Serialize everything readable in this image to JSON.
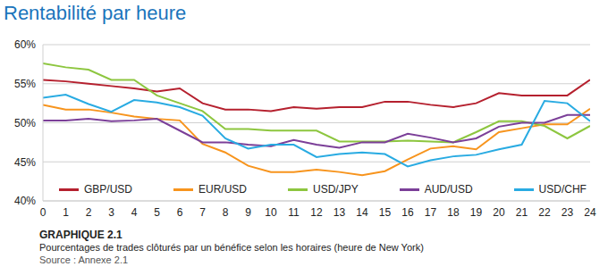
{
  "chart_data": {
    "type": "line",
    "title": "Rentabilité par heure",
    "annotations": [
      "GRAPHIQUE 2.1",
      "Pourcentages de trades clôturés par un bénéfice selon les horaires (heure de New York)",
      "Source : Annexe 2.1"
    ],
    "x": [
      0,
      1,
      2,
      3,
      4,
      5,
      6,
      7,
      8,
      9,
      10,
      11,
      12,
      13,
      14,
      15,
      16,
      17,
      18,
      19,
      20,
      21,
      22,
      23,
      24
    ],
    "xlim": [
      0,
      24
    ],
    "xticks": [
      0,
      1,
      2,
      3,
      4,
      5,
      6,
      7,
      8,
      9,
      10,
      11,
      12,
      13,
      14,
      15,
      16,
      17,
      18,
      19,
      20,
      21,
      22,
      23,
      24
    ],
    "ylim": [
      40,
      60
    ],
    "yticks": [
      {
        "value": 40,
        "label": "40%"
      },
      {
        "value": 45,
        "label": "45%"
      },
      {
        "value": 50,
        "label": "50%"
      },
      {
        "value": 55,
        "label": "55%"
      },
      {
        "value": 60,
        "label": "60%"
      }
    ],
    "grid": true,
    "legend": "bottom",
    "series": [
      {
        "name": "GBP/USD",
        "color": "#b5202e",
        "values": [
          55.5,
          55.3,
          55,
          54.7,
          54.4,
          54,
          54.4,
          52.5,
          51.7,
          51.7,
          51.5,
          52,
          51.8,
          52,
          52,
          52.7,
          52.7,
          52.3,
          52,
          52.5,
          53.8,
          53.5,
          53.5,
          53.5,
          55.5
        ]
      },
      {
        "name": "EUR/USD",
        "color": "#f7941d",
        "values": [
          52.3,
          51.7,
          51.7,
          51.3,
          50.8,
          50.5,
          50.3,
          47.3,
          46.2,
          44.5,
          43.7,
          43.7,
          44,
          43.7,
          43.3,
          43.8,
          45.3,
          46.7,
          47,
          46.6,
          48.8,
          49.3,
          49.8,
          49.8,
          51.8
        ]
      },
      {
        "name": "USD/JPY",
        "color": "#8dc63f",
        "values": [
          57.6,
          57.1,
          56.8,
          55.5,
          55.5,
          53.5,
          52.5,
          51.5,
          49.2,
          49.2,
          49,
          49,
          49,
          47.6,
          47.6,
          47.6,
          47.7,
          47.6,
          47.5,
          48.8,
          50.2,
          50.2,
          49.6,
          48,
          49.6
        ]
      },
      {
        "name": "AUD/USD",
        "color": "#7b3f98",
        "values": [
          50.3,
          50.3,
          50.5,
          50.2,
          50.3,
          50.5,
          49,
          47.5,
          47.5,
          47.2,
          47,
          47.8,
          47.2,
          46.8,
          47.5,
          47.5,
          48.6,
          48.1,
          47.5,
          48,
          49.5,
          50,
          50,
          51,
          51
        ]
      },
      {
        "name": "USD/CHF",
        "color": "#29abe2",
        "values": [
          53.2,
          53.6,
          52.4,
          51.4,
          52.9,
          52.6,
          52,
          50.9,
          48,
          46.7,
          47.2,
          47.2,
          45.6,
          46,
          46.2,
          46,
          44.4,
          45.2,
          45.7,
          45.9,
          46.6,
          47.2,
          52.8,
          52.5,
          50.2
        ]
      }
    ]
  }
}
